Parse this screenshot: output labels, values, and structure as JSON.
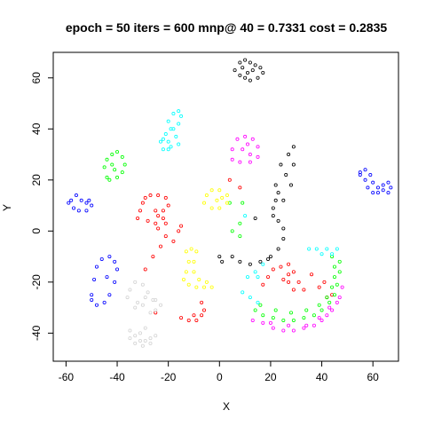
{
  "chart_data": {
    "type": "scatter",
    "title": "epoch = 50 iters = 600 mnp@ 40 = 0.7331 cost = 0.2835",
    "xlabel": "X",
    "ylabel": "Y",
    "xlim": [
      -65,
      70
    ],
    "ylim": [
      -51,
      70
    ],
    "xticks": [
      -60,
      -40,
      -20,
      0,
      20,
      40,
      60
    ],
    "yticks": [
      -40,
      -20,
      0,
      20,
      40,
      60
    ],
    "xtick_labels": [
      "-60",
      "-40",
      "-20",
      "0",
      "20",
      "40",
      "60"
    ],
    "ytick_labels": [
      "-40",
      "-20",
      "0",
      "20",
      "40",
      "60"
    ],
    "grid": false,
    "marker": "open-circle",
    "series": [
      {
        "color": "#000000",
        "points": [
          [
            6,
            63
          ],
          [
            8,
            66
          ],
          [
            10,
            67
          ],
          [
            12,
            66
          ],
          [
            14,
            65
          ],
          [
            16,
            64
          ],
          [
            17,
            62
          ],
          [
            15,
            60
          ],
          [
            12,
            59
          ],
          [
            10,
            60
          ],
          [
            8,
            61
          ],
          [
            9,
            64
          ],
          [
            13,
            63
          ],
          [
            11,
            62
          ],
          [
            22,
            12
          ],
          [
            22,
            18
          ],
          [
            24,
            26
          ],
          [
            27,
            30
          ],
          [
            29,
            26
          ],
          [
            28,
            18
          ],
          [
            25,
            12
          ],
          [
            23,
            15
          ],
          [
            26,
            22
          ],
          [
            29,
            33
          ],
          [
            21,
            9
          ],
          [
            5,
            -10
          ],
          [
            8,
            -12
          ],
          [
            12,
            -13
          ],
          [
            16,
            -12
          ],
          [
            20,
            -10
          ],
          [
            23,
            -7
          ],
          [
            25,
            -3
          ],
          [
            25,
            1
          ],
          [
            23,
            4
          ],
          [
            21,
            6
          ],
          [
            14,
            5
          ],
          [
            19,
            -11
          ],
          [
            1,
            -12
          ],
          [
            0,
            -10
          ]
        ]
      },
      {
        "color": "#ff0000",
        "points": [
          [
            -32,
            5
          ],
          [
            -31,
            8
          ],
          [
            -30,
            11
          ],
          [
            -29,
            13
          ],
          [
            -27,
            14
          ],
          [
            -24,
            14
          ],
          [
            -21,
            13
          ],
          [
            -20,
            10
          ],
          [
            -22,
            8
          ],
          [
            -25,
            8
          ],
          [
            -24,
            6
          ],
          [
            -22,
            5
          ],
          [
            -28,
            4
          ],
          [
            -25,
            3
          ],
          [
            -21,
            3
          ],
          [
            -24,
            1
          ],
          [
            -21,
            -2
          ],
          [
            -23,
            -6
          ],
          [
            -26,
            -10
          ],
          [
            -18,
            -4
          ],
          [
            -16,
            0
          ],
          [
            -15,
            2
          ],
          [
            -29,
            -15
          ],
          [
            -25,
            -32
          ],
          [
            -15,
            -34
          ],
          [
            -12,
            -35
          ],
          [
            -9,
            -35
          ],
          [
            -7,
            -33
          ],
          [
            -6,
            -31
          ],
          [
            -7,
            -28
          ],
          [
            -10,
            -33
          ],
          [
            17,
            -21
          ],
          [
            19,
            -18
          ],
          [
            21,
            -15
          ],
          [
            24,
            -14
          ],
          [
            27,
            -13
          ],
          [
            29,
            -16
          ],
          [
            31,
            -20
          ],
          [
            33,
            -23
          ],
          [
            29,
            -23
          ],
          [
            27,
            -20
          ],
          [
            25,
            -19
          ],
          [
            27,
            -17
          ],
          [
            36,
            -17
          ],
          [
            39,
            -22
          ],
          [
            42,
            -26
          ],
          [
            44,
            -25
          ],
          [
            41,
            -20
          ],
          [
            4,
            20
          ],
          [
            8,
            17
          ]
        ]
      },
      {
        "color": "#00ff00",
        "points": [
          [
            -44,
            21
          ],
          [
            -45,
            25
          ],
          [
            -44,
            28
          ],
          [
            -42,
            30
          ],
          [
            -40,
            31
          ],
          [
            -38,
            29
          ],
          [
            -37,
            26
          ],
          [
            -38,
            23
          ],
          [
            -40,
            21
          ],
          [
            -43,
            20
          ],
          [
            -42,
            26
          ],
          [
            -41,
            24
          ],
          [
            14,
            -31
          ],
          [
            17,
            -33
          ],
          [
            21,
            -34
          ],
          [
            25,
            -35
          ],
          [
            29,
            -35
          ],
          [
            33,
            -34
          ],
          [
            37,
            -33
          ],
          [
            40,
            -31
          ],
          [
            43,
            -28
          ],
          [
            45,
            -25
          ],
          [
            46,
            -21
          ],
          [
            47,
            -16
          ],
          [
            47,
            -12
          ],
          [
            16,
            -29
          ],
          [
            22,
            -31
          ],
          [
            28,
            -32
          ],
          [
            34,
            -31
          ],
          [
            39,
            -29
          ],
          [
            42,
            -26
          ],
          [
            44,
            -22
          ],
          [
            45,
            -18
          ],
          [
            45,
            -14
          ],
          [
            44,
            -10
          ],
          [
            5,
            0
          ],
          [
            8,
            3
          ],
          [
            9,
            11
          ],
          [
            4,
            11
          ],
          [
            8,
            -2
          ]
        ]
      },
      {
        "color": "#0000ff",
        "points": [
          [
            -50,
            -25
          ],
          [
            -49,
            -19
          ],
          [
            -48,
            -14
          ],
          [
            -46,
            -11
          ],
          [
            -43,
            -10
          ],
          [
            -41,
            -12
          ],
          [
            -40,
            -15
          ],
          [
            -41,
            -20
          ],
          [
            -43,
            -25
          ],
          [
            -45,
            -28
          ],
          [
            -48,
            -29
          ],
          [
            -50,
            -27
          ],
          [
            -44,
            -18
          ],
          [
            55,
            23
          ],
          [
            57,
            24
          ],
          [
            59,
            22
          ],
          [
            60,
            19
          ],
          [
            62,
            17
          ],
          [
            64,
            18
          ],
          [
            66,
            19
          ],
          [
            67,
            17
          ],
          [
            66,
            15
          ],
          [
            64,
            16
          ],
          [
            62,
            15
          ],
          [
            60,
            15
          ],
          [
            58,
            17
          ],
          [
            57,
            20
          ],
          [
            55,
            22
          ],
          [
            -58,
            12
          ],
          [
            -56,
            14
          ],
          [
            -54,
            12
          ],
          [
            -52,
            11
          ],
          [
            -50,
            10
          ],
          [
            -52,
            8
          ],
          [
            -55,
            8
          ],
          [
            -57,
            9
          ],
          [
            -59,
            11
          ],
          [
            -51,
            12
          ]
        ]
      },
      {
        "color": "#00ffff",
        "points": [
          [
            -22,
            32
          ],
          [
            -23,
            35
          ],
          [
            -21,
            38
          ],
          [
            -19,
            40
          ],
          [
            -20,
            43
          ],
          [
            -18,
            46
          ],
          [
            -16,
            47
          ],
          [
            -15,
            45
          ],
          [
            -16,
            42
          ],
          [
            -18,
            40
          ],
          [
            -17,
            37
          ],
          [
            -16,
            34
          ],
          [
            -19,
            33
          ],
          [
            -20,
            35
          ],
          [
            -22,
            36
          ],
          [
            -20,
            32
          ],
          [
            11,
            -18
          ],
          [
            14,
            -16
          ],
          [
            17,
            -13
          ],
          [
            15,
            -18
          ],
          [
            9,
            -24
          ],
          [
            12,
            -26
          ],
          [
            15,
            -28
          ],
          [
            35,
            -7
          ],
          [
            38,
            -7
          ],
          [
            42,
            -7
          ],
          [
            46,
            -7
          ],
          [
            40,
            -9
          ],
          [
            44,
            -9
          ],
          [
            10,
            6
          ]
        ]
      },
      {
        "color": "#ff00ff",
        "points": [
          [
            5,
            28
          ],
          [
            5,
            32
          ],
          [
            7,
            36
          ],
          [
            10,
            37
          ],
          [
            13,
            36
          ],
          [
            15,
            33
          ],
          [
            15,
            29
          ],
          [
            12,
            27
          ],
          [
            8,
            27
          ],
          [
            9,
            32
          ],
          [
            12,
            30
          ],
          [
            11,
            34
          ],
          [
            13,
            -35
          ],
          [
            17,
            -36
          ],
          [
            21,
            -38
          ],
          [
            25,
            -39
          ],
          [
            29,
            -39
          ],
          [
            33,
            -38
          ],
          [
            37,
            -37
          ],
          [
            40,
            -35
          ],
          [
            42,
            -33
          ],
          [
            44,
            -31
          ],
          [
            46,
            -28
          ],
          [
            47,
            -26
          ],
          [
            48,
            -22
          ],
          [
            20,
            -36
          ],
          [
            27,
            -37
          ],
          [
            34,
            -37
          ],
          [
            39,
            -34
          ],
          [
            43,
            -30
          ]
        ]
      },
      {
        "color": "#ffff00",
        "points": [
          [
            -6,
            11
          ],
          [
            -5,
            14
          ],
          [
            -3,
            16
          ],
          [
            0,
            16
          ],
          [
            3,
            14
          ],
          [
            3,
            11
          ],
          [
            0,
            9
          ],
          [
            -3,
            9
          ],
          [
            -1,
            12
          ],
          [
            1,
            13
          ],
          [
            -13,
            -8
          ],
          [
            -12,
            -12
          ],
          [
            -13,
            -16
          ],
          [
            -14,
            -19
          ],
          [
            -12,
            -21
          ],
          [
            -9,
            -22
          ],
          [
            -6,
            -22
          ],
          [
            -3,
            -22
          ],
          [
            -5,
            -20
          ],
          [
            -8,
            -19
          ],
          [
            -10,
            -16
          ],
          [
            -10,
            -12
          ],
          [
            -9,
            -8
          ],
          [
            -11,
            -7
          ]
        ]
      },
      {
        "color": "#d3d3d3",
        "points": [
          [
            -36,
            -26
          ],
          [
            -35,
            -23
          ],
          [
            -33,
            -20
          ],
          [
            -30,
            -21
          ],
          [
            -28,
            -24
          ],
          [
            -26,
            -27
          ],
          [
            -25,
            -31
          ],
          [
            -27,
            -32
          ],
          [
            -30,
            -29
          ],
          [
            -33,
            -30
          ],
          [
            -32,
            -28
          ],
          [
            -29,
            -26
          ],
          [
            -35,
            -39
          ],
          [
            -33,
            -41
          ],
          [
            -31,
            -43
          ],
          [
            -29,
            -43
          ],
          [
            -27,
            -42
          ],
          [
            -25,
            -41
          ],
          [
            -27,
            -44
          ],
          [
            -30,
            -45
          ],
          [
            -33,
            -44
          ],
          [
            -35,
            -42
          ],
          [
            -31,
            -40
          ],
          [
            -29,
            -38
          ],
          [
            -25,
            -27
          ],
          [
            -23,
            -29
          ]
        ]
      }
    ]
  }
}
